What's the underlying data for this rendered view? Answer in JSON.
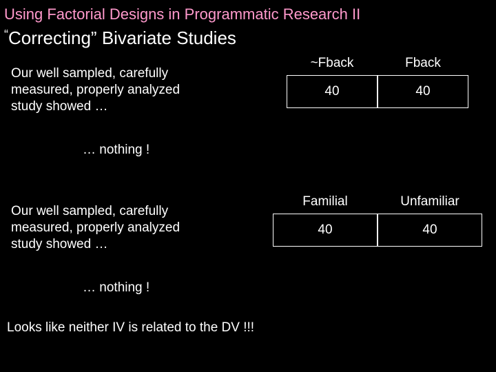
{
  "title": "Using Factorial Designs in Programmatic Research  II",
  "subtitle_quote": "“",
  "subtitle_rest": "Correcting” Bivariate Studies",
  "para1_l1": "Our well sampled, carefully",
  "para1_l2": "measured, properly analyzed",
  "para1_l3": "study showed …",
  "nothing1": "… nothing !",
  "para2_l1": "Our well sampled, carefully",
  "para2_l2": "measured, properly analyzed",
  "para2_l3": "study showed …",
  "nothing2": "… nothing !",
  "conclusion": "Looks like neither IV is related to the DV !!!",
  "table1": {
    "headers": [
      "~Fback",
      "Fback"
    ],
    "row": [
      "40",
      "40"
    ]
  },
  "table2": {
    "headers": [
      "Familial",
      "Unfamiliar"
    ],
    "row": [
      "40",
      "40"
    ]
  },
  "colors": {
    "title": "#ff99cc",
    "text": "#ffffff",
    "background": "#000000",
    "border": "#ffffff"
  }
}
